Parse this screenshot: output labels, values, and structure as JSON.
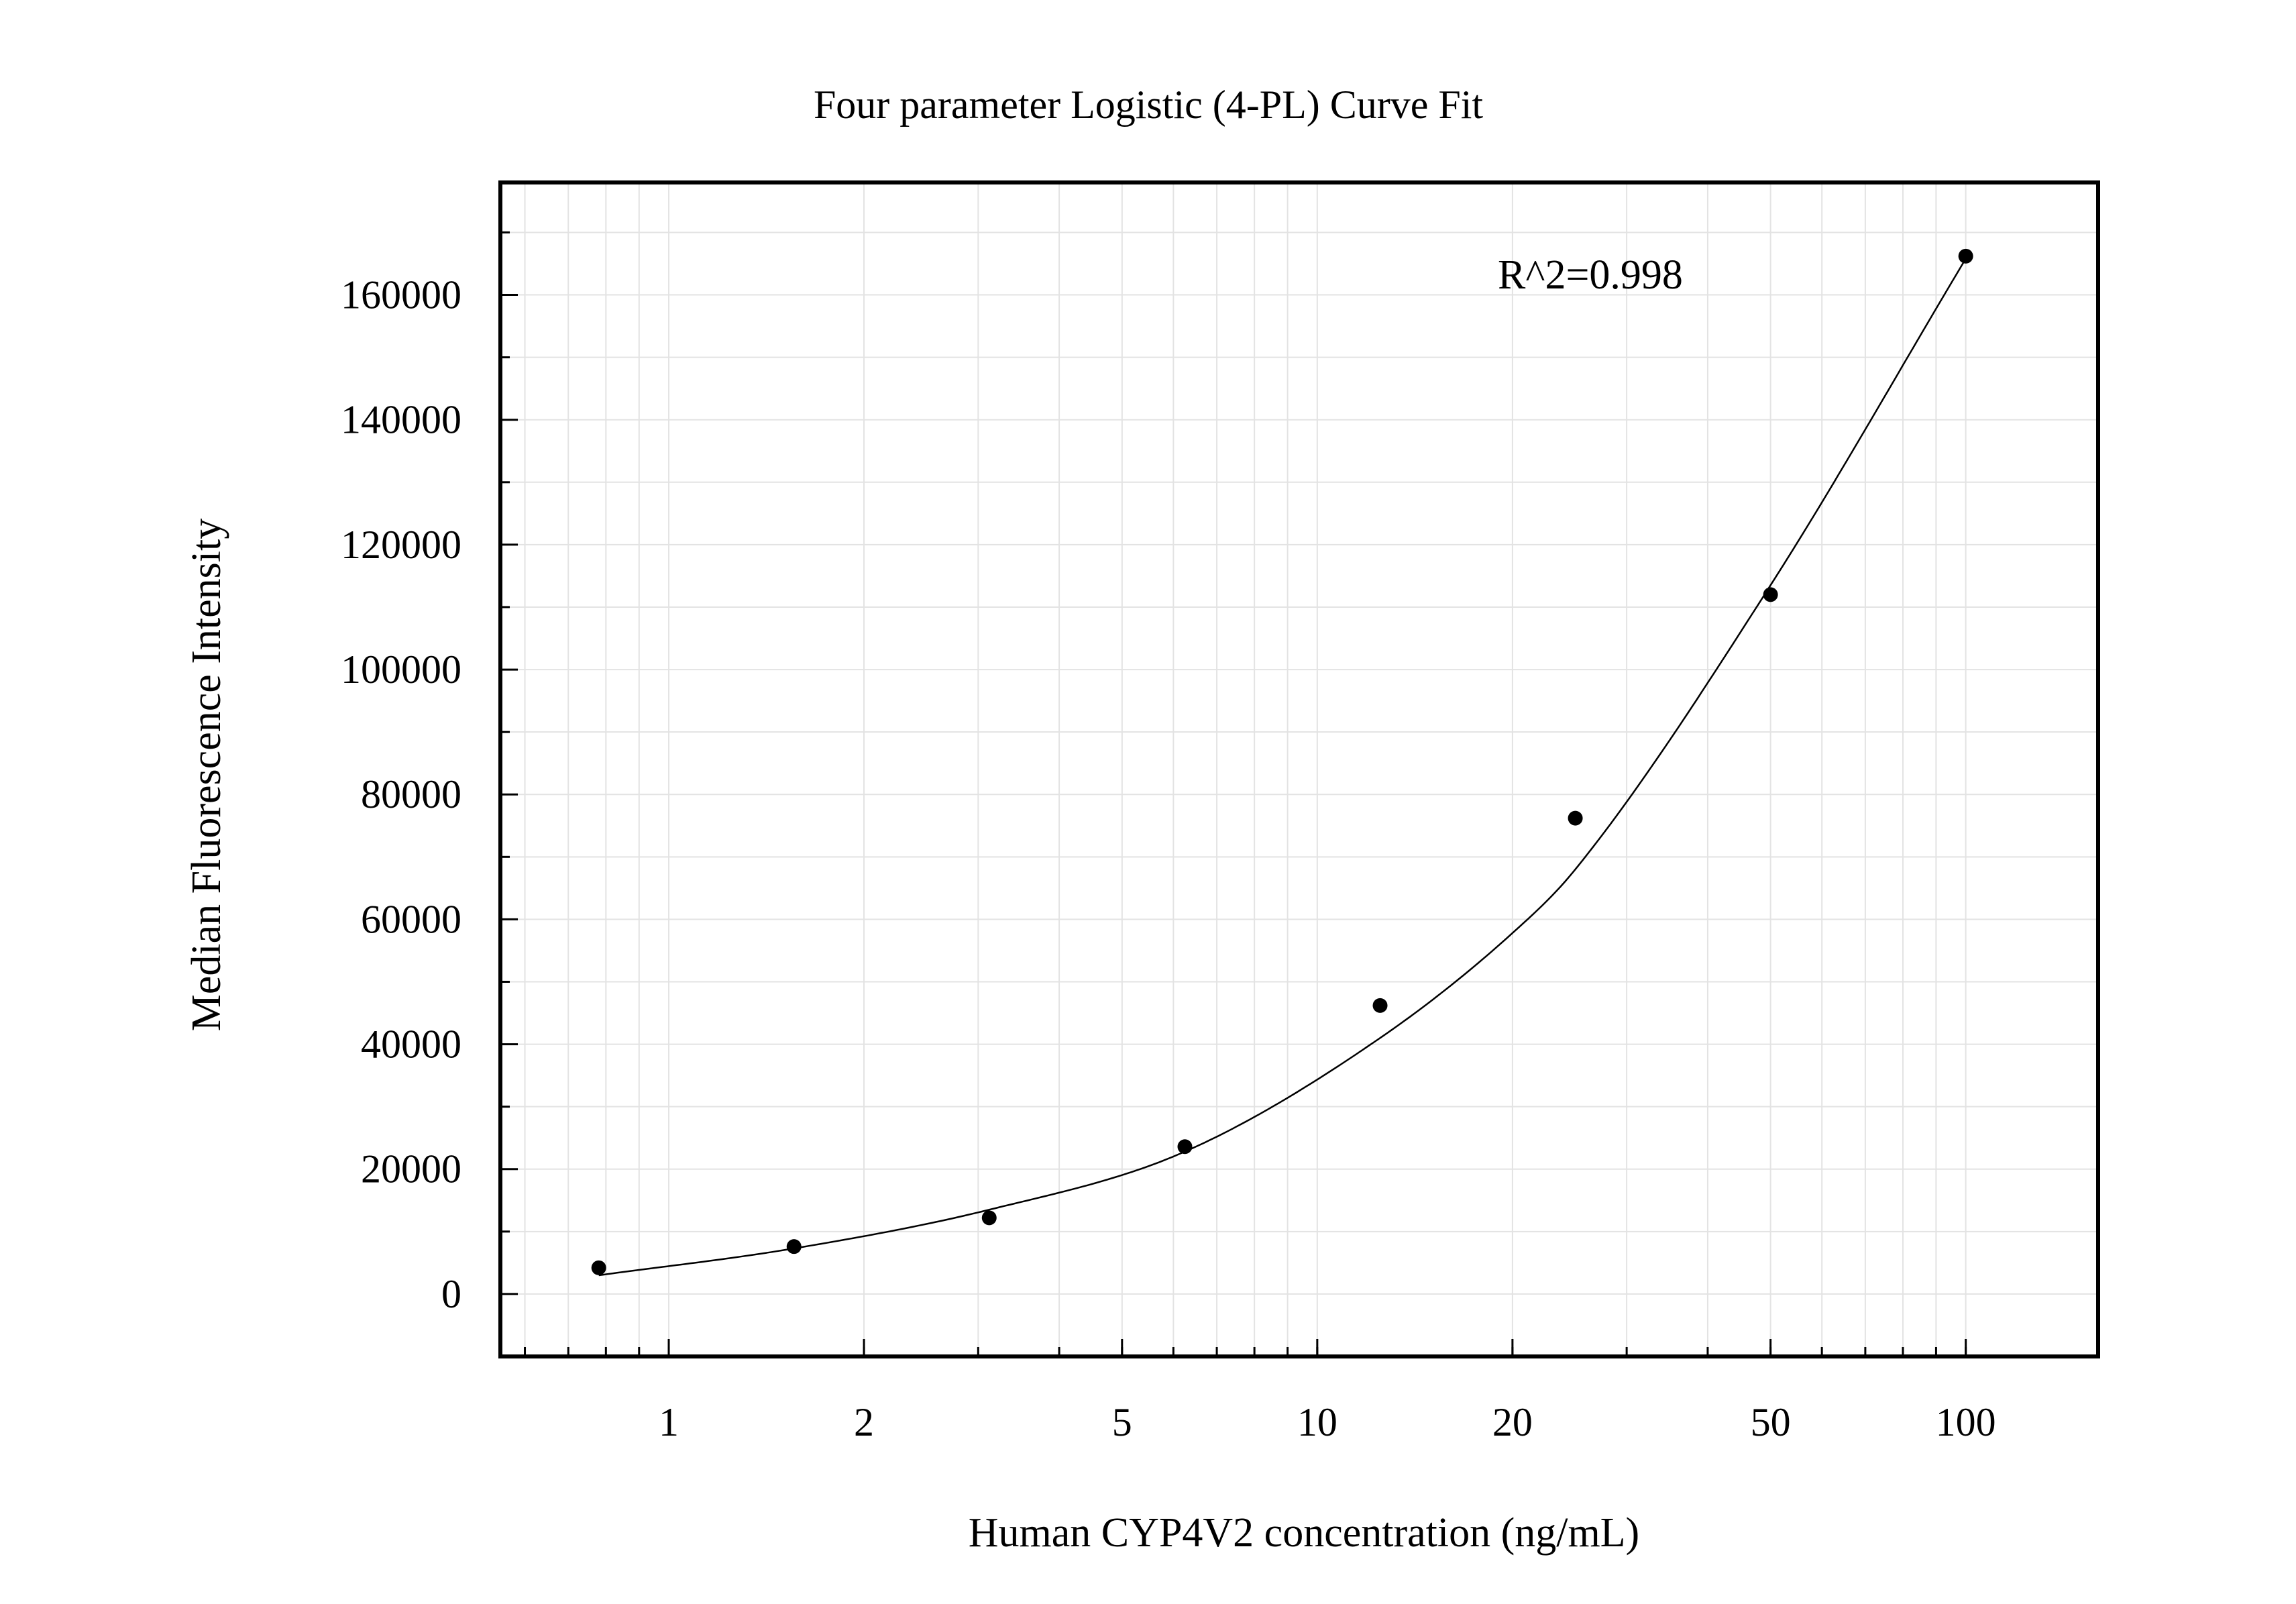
{
  "chart_data": {
    "type": "scatter",
    "title": "Four parameter Logistic (4-PL) Curve Fit",
    "xlabel": "Human CYP4V2 concentration (ng/mL)",
    "ylabel": "Median Fluorescence Intensity",
    "x_scale": "log",
    "xlim": [
      0.55,
      160
    ],
    "ylim": [
      -10000,
      178000
    ],
    "x_ticks": [
      1,
      2,
      5,
      10,
      20,
      50,
      100
    ],
    "x_tick_labels": [
      "1",
      "2",
      "5",
      "10",
      "20",
      "50",
      "100"
    ],
    "y_ticks": [
      0,
      20000,
      40000,
      60000,
      80000,
      100000,
      120000,
      140000,
      160000
    ],
    "y_tick_labels": [
      "0",
      "20000",
      "40000",
      "60000",
      "80000",
      "100000",
      "120000",
      "140000",
      "160000"
    ],
    "grid": true,
    "annotation": "R^2=0.998",
    "series": [
      {
        "kind": "points",
        "color": "#000000",
        "x": [
          0.78,
          1.56,
          3.12,
          6.25,
          12.5,
          25,
          50,
          100
        ],
        "y": [
          4200,
          7600,
          12200,
          23600,
          46200,
          76200,
          112000,
          166200
        ]
      },
      {
        "kind": "fit",
        "color": "#000000",
        "x": [
          0.78,
          1.56,
          3.12,
          6.25,
          12.5,
          20,
          25,
          50,
          100
        ],
        "y": [
          3000,
          7300,
          13500,
          22800,
          41000,
          57800,
          68000,
          113500,
          165800
        ]
      }
    ]
  }
}
